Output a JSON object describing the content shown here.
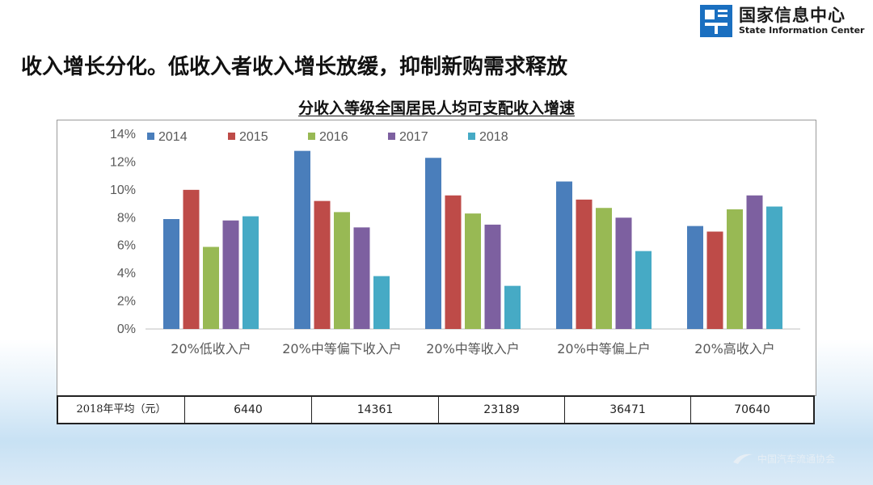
{
  "logo": {
    "cn": "国家信息中心",
    "en": "State Information Center"
  },
  "headline": "收入增长分化。低收入者收入增长放缓，抑制新购需求释放",
  "chart_data": {
    "type": "bar",
    "title": "分收入等级全国居民人均可支配收入增速",
    "categories": [
      "20%低收入户",
      "20%中等偏下收入户",
      "20%中等收入户",
      "20%中等偏上户",
      "20%高收入户"
    ],
    "series": [
      {
        "name": "2014",
        "color": "#4a7ebb",
        "values": [
          7.9,
          12.8,
          12.3,
          10.6,
          7.4
        ]
      },
      {
        "name": "2015",
        "color": "#be4b48",
        "values": [
          10.0,
          9.2,
          9.6,
          9.3,
          7.0
        ]
      },
      {
        "name": "2016",
        "color": "#98b954",
        "values": [
          5.9,
          8.4,
          8.3,
          8.7,
          8.6
        ]
      },
      {
        "name": "2017",
        "color": "#7d60a0",
        "values": [
          7.8,
          7.3,
          7.5,
          8.0,
          9.6
        ]
      },
      {
        "name": "2018",
        "color": "#46aac5",
        "values": [
          8.1,
          3.8,
          3.1,
          5.6,
          8.8
        ]
      }
    ],
    "yticks": [
      "0%",
      "2%",
      "4%",
      "6%",
      "8%",
      "10%",
      "12%",
      "14%"
    ],
    "ylim": [
      0,
      14
    ],
    "legend_position": "top-left",
    "grid": false
  },
  "table": {
    "label": "2018年平均（元）",
    "values": [
      "6440",
      "14361",
      "23189",
      "36471",
      "70640"
    ]
  },
  "watermark": "中国汽车流通协会"
}
